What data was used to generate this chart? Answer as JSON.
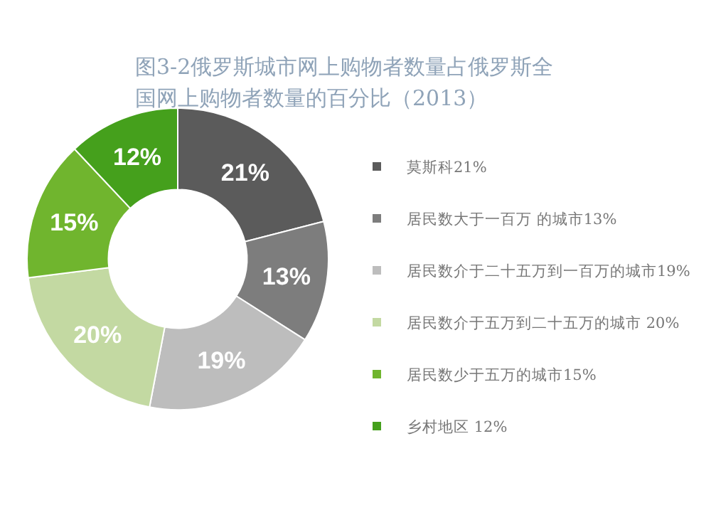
{
  "chart_data": {
    "type": "donut",
    "title": "图3-2俄罗斯城市网上购物者数量占俄罗斯全国网上购物者数量的百分比（2013）",
    "categories": [
      "莫斯科21%",
      "居民数大于一百万 的城市13%",
      "居民数介于二十五万到一百万的城市19%",
      "居民数介于五万到二十五万的城市 20%",
      "居民数少于五万的城市15%",
      "乡村地区 12%"
    ],
    "values": [
      21,
      13,
      19,
      20,
      15,
      12
    ],
    "colors": [
      "#5b5b5b",
      "#7d7d7d",
      "#bdbdbd",
      "#c3d9a2",
      "#70b52e",
      "#45a01c"
    ],
    "value_labels": [
      "21%",
      "13%",
      "19%",
      "20%",
      "15%",
      "12%"
    ],
    "legend": "right"
  }
}
